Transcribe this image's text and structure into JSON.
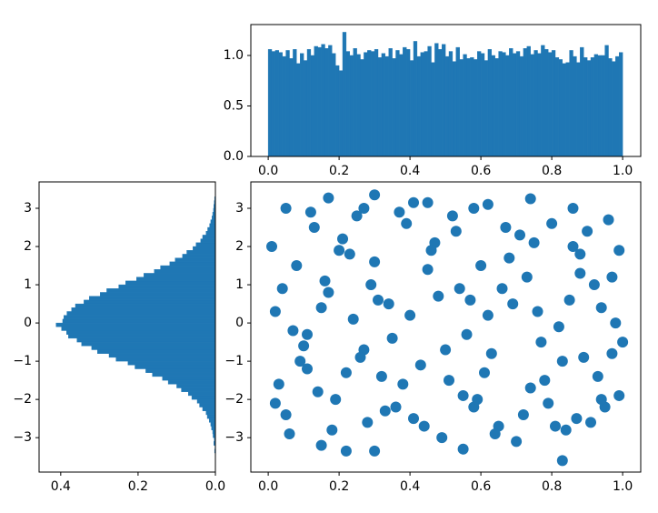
{
  "chart_data": [
    {
      "type": "histogram",
      "orientation": "vertical",
      "color": "#1f77b4",
      "bins": [
        0,
        0.01,
        0.02,
        0.03,
        0.04,
        0.05,
        0.06,
        0.07,
        0.08,
        0.09,
        0.1,
        0.11,
        0.12,
        0.13,
        0.14,
        0.15,
        0.16,
        0.17,
        0.18,
        0.19,
        0.2,
        0.21,
        0.22,
        0.23,
        0.24,
        0.25,
        0.26,
        0.27,
        0.28,
        0.29,
        0.3,
        0.31,
        0.32,
        0.33,
        0.34,
        0.35,
        0.36,
        0.37,
        0.38,
        0.39,
        0.4,
        0.41,
        0.42,
        0.43,
        0.44,
        0.45,
        0.46,
        0.47,
        0.48,
        0.49,
        0.5,
        0.51,
        0.52,
        0.53,
        0.54,
        0.55,
        0.56,
        0.57,
        0.58,
        0.59,
        0.6,
        0.61,
        0.62,
        0.63,
        0.64,
        0.65,
        0.66,
        0.67,
        0.68,
        0.69,
        0.7,
        0.71,
        0.72,
        0.73,
        0.74,
        0.75,
        0.76,
        0.77,
        0.78,
        0.79,
        0.8,
        0.81,
        0.82,
        0.83,
        0.84,
        0.85,
        0.86,
        0.87,
        0.88,
        0.89,
        0.9,
        0.91,
        0.92,
        0.93,
        0.94,
        0.95,
        0.96,
        0.97,
        0.98,
        0.99,
        1
      ],
      "values": [
        1.06,
        1.04,
        1.05,
        1.03,
        0.99,
        1.05,
        0.97,
        1.06,
        0.92,
        1.02,
        0.95,
        1.06,
        1.0,
        1.09,
        1.08,
        1.11,
        1.07,
        1.1,
        1.02,
        0.9,
        0.85,
        1.23,
        1.04,
        1.0,
        1.07,
        1.01,
        0.96,
        1.03,
        1.05,
        1.04,
        1.06,
        0.98,
        1.02,
        0.99,
        1.07,
        0.97,
        1.05,
        1.01,
        1.08,
        1.06,
        0.95,
        1.14,
        0.99,
        1.03,
        1.04,
        1.09,
        0.93,
        1.12,
        1.06,
        1.11,
        0.99,
        1.04,
        0.94,
        1.08,
        0.96,
        1.01,
        0.97,
        0.98,
        0.96,
        1.04,
        1.02,
        0.95,
        1.06,
        1.0,
        0.97,
        1.04,
        1.03,
        1.0,
        1.07,
        1.02,
        1.04,
        0.99,
        1.07,
        1.09,
        1.01,
        1.05,
        1.02,
        1.1,
        1.06,
        1.03,
        1.05,
        0.98,
        0.96,
        0.92,
        0.93,
        1.05,
        0.99,
        0.93,
        1.08,
        0.98,
        0.95,
        0.98,
        1.01,
        1.0,
        1.0,
        1.1,
        0.97,
        0.94,
        0.99,
        1.03
      ],
      "xlim": [
        -0.049,
        1.051
      ],
      "ylim": [
        0,
        1.306
      ],
      "xticks": [
        {
          "value": 0,
          "label": "0.0"
        },
        {
          "value": 0.2,
          "label": "0.2"
        },
        {
          "value": 0.4,
          "label": "0.4"
        },
        {
          "value": 0.6,
          "label": "0.6"
        },
        {
          "value": 0.8,
          "label": "0.8"
        },
        {
          "value": 1,
          "label": "1.0"
        }
      ],
      "yticks": [
        {
          "value": 0,
          "label": "0.0"
        },
        {
          "value": 0.5,
          "label": "0.5"
        },
        {
          "value": 1,
          "label": "1.0"
        }
      ]
    },
    {
      "type": "histogram",
      "orientation": "horizontal",
      "color": "#1f77b4",
      "bins": [
        -3.4,
        -3.3,
        -3.2,
        -3.1,
        -3.0,
        -2.9,
        -2.8,
        -2.7,
        -2.6,
        -2.5,
        -2.4,
        -2.3,
        -2.2,
        -2.1,
        -2.0,
        -1.9,
        -1.8,
        -1.7,
        -1.6,
        -1.5,
        -1.4,
        -1.3,
        -1.2,
        -1.1,
        -1.0,
        -0.9,
        -0.8,
        -0.7,
        -0.6,
        -0.5,
        -0.4,
        -0.3,
        -0.2,
        -0.1,
        0,
        0.1,
        0.2,
        0.3,
        0.4,
        0.5,
        0.6,
        0.7,
        0.8,
        0.9,
        1.0,
        1.1,
        1.2,
        1.3,
        1.4,
        1.5,
        1.6,
        1.7,
        1.8,
        1.9,
        2.0,
        2.1,
        2.2,
        2.3,
        2.4,
        2.5,
        2.6,
        2.7,
        2.8,
        2.9,
        3.0,
        3.1,
        3.2,
        3.3
      ],
      "values": [
        0.002,
        0.001,
        0.004,
        0.003,
        0.006,
        0.007,
        0.01,
        0.012,
        0.016,
        0.021,
        0.024,
        0.033,
        0.041,
        0.047,
        0.061,
        0.07,
        0.088,
        0.1,
        0.122,
        0.137,
        0.163,
        0.18,
        0.208,
        0.226,
        0.257,
        0.275,
        0.305,
        0.32,
        0.346,
        0.358,
        0.38,
        0.385,
        0.398,
        0.412,
        0.395,
        0.392,
        0.384,
        0.372,
        0.362,
        0.34,
        0.326,
        0.298,
        0.281,
        0.25,
        0.232,
        0.204,
        0.185,
        0.158,
        0.142,
        0.118,
        0.104,
        0.085,
        0.074,
        0.058,
        0.05,
        0.038,
        0.033,
        0.024,
        0.02,
        0.015,
        0.012,
        0.009,
        0.007,
        0.005,
        0.004,
        0.003,
        0.002
      ],
      "xlim": [
        0.456,
        0
      ],
      "ylim": [
        -3.9,
        3.69
      ],
      "xticks": [
        {
          "value": 0.4,
          "label": "0.4"
        },
        {
          "value": 0.2,
          "label": "0.2"
        },
        {
          "value": 0,
          "label": "0.0"
        }
      ],
      "yticks": [
        {
          "value": -3,
          "label": "−3"
        },
        {
          "value": -2,
          "label": "−2"
        },
        {
          "value": -1,
          "label": "−1"
        },
        0,
        1,
        2,
        3
      ]
    },
    {
      "type": "scatter",
      "color": "#1f77b4",
      "x": [
        0.02,
        0.11,
        0.23,
        0.35,
        0.47,
        0.58,
        0.66,
        0.74,
        0.88,
        0.97,
        0.05,
        0.16,
        0.27,
        0.39,
        0.51,
        0.62,
        0.71,
        0.82,
        0.91,
        0.99,
        0.08,
        0.19,
        0.31,
        0.43,
        0.54,
        0.65,
        0.77,
        0.86,
        0.94,
        0.03,
        0.13,
        0.24,
        0.33,
        0.45,
        0.56,
        0.68,
        0.79,
        0.89,
        0.96,
        0.07,
        0.1,
        0.21,
        0.29,
        0.41,
        0.52,
        0.61,
        0.73,
        0.84,
        0.93,
        0.01,
        0.14,
        0.26,
        0.37,
        0.48,
        0.59,
        0.69,
        0.8,
        0.92,
        0.98,
        0.06,
        0.17,
        0.28,
        0.38,
        0.5,
        0.6,
        0.72,
        0.83,
        0.95,
        0.04,
        0.12,
        0.18,
        0.3,
        0.4,
        0.53,
        0.63,
        0.75,
        0.85,
        0.9,
        0.99,
        0.09,
        0.2,
        0.32,
        0.44,
        0.55,
        0.67,
        0.78,
        0.87,
        0.97,
        0.02,
        0.15,
        0.22,
        0.34,
        0.46,
        0.57,
        0.64,
        0.76,
        0.88,
        1.0,
        0.11,
        0.25,
        0.3,
        0.17,
        0.83,
        0.22,
        0.3,
        0.55,
        0.15,
        0.41,
        0.74,
        0.45,
        0.36,
        0.49,
        0.58,
        0.7,
        0.81,
        0.94,
        0.05,
        0.27,
        0.62,
        0.86
      ],
      "y": [
        0.3,
        -1.2,
        1.8,
        -0.4,
        2.1,
        -2.2,
        0.9,
        -1.7,
        1.3,
        -0.8,
        -2.4,
        1.1,
        -0.7,
        2.6,
        -1.5,
        0.2,
        2.3,
        -0.1,
        -2.6,
        1.9,
        1.5,
        -2.0,
        0.6,
        -1.1,
        0.9,
        -2.7,
        -0.5,
        2.0,
        0.4,
        -1.6,
        2.5,
        0.1,
        -2.3,
        1.4,
        -0.3,
        1.7,
        -2.1,
        -0.9,
        2.7,
        -0.2,
        -0.6,
        2.2,
        1.0,
        -2.5,
        2.8,
        -1.3,
        1.2,
        -2.8,
        -1.4,
        2.0,
        -1.8,
        -0.9,
        2.9,
        0.7,
        -2.0,
        0.5,
        2.6,
        1.0,
        0.0,
        -2.9,
        0.8,
        -2.6,
        -1.6,
        -0.7,
        1.5,
        -2.4,
        -1.0,
        -2.2,
        0.9,
        2.9,
        -2.8,
        1.6,
        0.2,
        2.4,
        -0.8,
        2.1,
        0.6,
        2.4,
        -1.9,
        -1.0,
        1.9,
        -1.4,
        -2.7,
        -1.9,
        2.5,
        -1.5,
        -2.5,
        1.2,
        -2.1,
        0.4,
        -1.3,
        0.5,
        1.9,
        0.6,
        -2.9,
        0.3,
        1.8,
        -0.5,
        -0.3,
        2.8,
        3.35,
        3.27,
        -3.6,
        -3.35,
        -3.35,
        -3.3,
        -3.2,
        3.15,
        3.25,
        3.15,
        -2.2,
        -3.0,
        3.0,
        -3.1,
        -2.7,
        -2.0,
        3.0,
        3.0,
        3.1,
        3.0
      ],
      "xlim": [
        -0.049,
        1.051
      ],
      "ylim": [
        -3.9,
        3.69
      ],
      "xticks": [
        {
          "value": 0,
          "label": "0.0"
        },
        {
          "value": 0.2,
          "label": "0.2"
        },
        {
          "value": 0.4,
          "label": "0.4"
        },
        {
          "value": 0.6,
          "label": "0.6"
        },
        {
          "value": 0.8,
          "label": "0.8"
        },
        {
          "value": 1,
          "label": "1.0"
        }
      ],
      "yticks": [
        {
          "value": -3,
          "label": "−3"
        },
        {
          "value": -2,
          "label": "−2"
        },
        {
          "value": -1,
          "label": "−1"
        },
        0,
        1,
        2,
        3
      ]
    }
  ]
}
